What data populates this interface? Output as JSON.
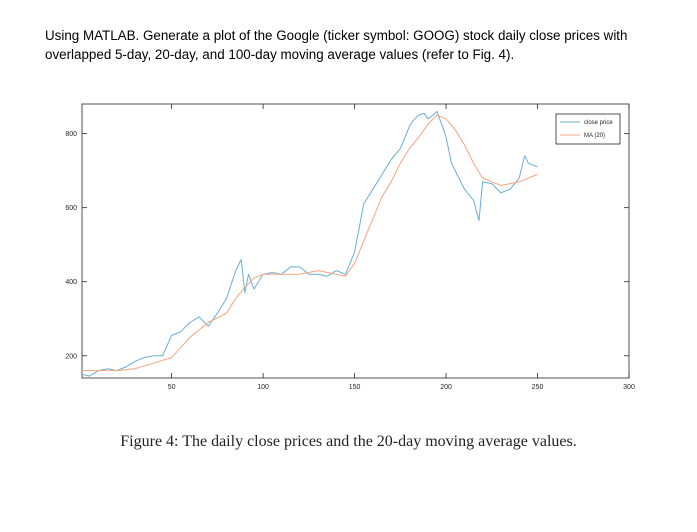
{
  "prompt": {
    "line1": "Using MATLAB. Generate a plot of the Google (ticker symbol: GOOG) stock daily close prices with",
    "line2": "overlapped 5-day, 20-day, and 100-day moving average values (refer to Fig. 4)."
  },
  "caption": "Figure 4:  The daily close prices and the 20-day moving average values.",
  "colors": {
    "close": "#6baed6",
    "ma": "#f4a582",
    "axis": "#262626",
    "frame": "#262626"
  },
  "chart_data": {
    "type": "line",
    "xlim": [
      1,
      300
    ],
    "ylim": [
      140,
      880
    ],
    "xticks": [
      50,
      100,
      150,
      200,
      250,
      300
    ],
    "yticks": [
      200,
      400,
      600,
      800
    ],
    "grid": false,
    "legend_position": "top-right",
    "series": [
      {
        "name": "close price",
        "x": [
          1,
          5,
          10,
          15,
          20,
          25,
          30,
          35,
          40,
          45,
          50,
          55,
          60,
          65,
          70,
          75,
          80,
          85,
          88,
          90,
          92,
          95,
          100,
          105,
          110,
          115,
          120,
          125,
          130,
          135,
          140,
          145,
          150,
          155,
          160,
          165,
          170,
          175,
          180,
          182,
          185,
          188,
          190,
          193,
          195,
          198,
          200,
          203,
          205,
          210,
          215,
          218,
          220,
          225,
          230,
          235,
          240,
          243,
          245,
          250
        ],
        "y": [
          150,
          145,
          160,
          165,
          160,
          170,
          185,
          195,
          200,
          200,
          255,
          265,
          290,
          305,
          280,
          315,
          355,
          430,
          460,
          370,
          420,
          380,
          420,
          425,
          420,
          440,
          440,
          420,
          420,
          415,
          430,
          420,
          480,
          610,
          650,
          690,
          730,
          760,
          820,
          835,
          850,
          855,
          840,
          850,
          860,
          820,
          790,
          720,
          700,
          650,
          620,
          565,
          670,
          665,
          640,
          650,
          680,
          740,
          720,
          710
        ]
      },
      {
        "name": "MA (20)",
        "x": [
          1,
          10,
          20,
          30,
          40,
          50,
          60,
          70,
          80,
          85,
          90,
          95,
          100,
          110,
          120,
          130,
          140,
          145,
          150,
          155,
          160,
          165,
          170,
          175,
          180,
          185,
          190,
          195,
          200,
          205,
          210,
          215,
          220,
          225,
          230,
          240,
          250
        ],
        "y": [
          160,
          160,
          160,
          165,
          180,
          195,
          250,
          290,
          315,
          355,
          385,
          410,
          420,
          420,
          420,
          430,
          420,
          415,
          450,
          510,
          570,
          630,
          670,
          720,
          760,
          790,
          825,
          850,
          840,
          810,
          770,
          720,
          680,
          670,
          660,
          670,
          690
        ]
      }
    ]
  }
}
